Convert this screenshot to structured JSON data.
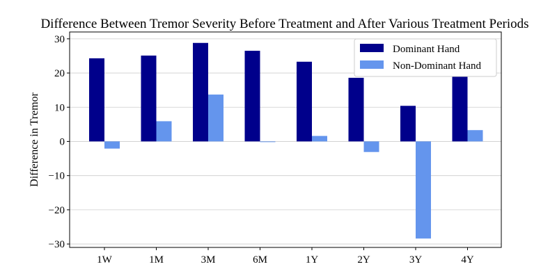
{
  "chart_data": {
    "type": "bar",
    "title": "Difference Between Tremor Severity Before Treatment and After Various Treatment Periods",
    "xlabel": "",
    "ylabel": "Difference in Tremor",
    "categories": [
      "1W",
      "1M",
      "3M",
      "6M",
      "1Y",
      "2Y",
      "3Y",
      "4Y"
    ],
    "series": [
      {
        "name": "Dominant Hand",
        "color": "#00008b",
        "values": [
          24.3,
          25.1,
          28.8,
          26.5,
          23.3,
          18.6,
          10.4,
          23.2
        ]
      },
      {
        "name": "Non-Dominant Hand",
        "color": "#6495ed",
        "values": [
          -2.1,
          5.9,
          13.7,
          -0.2,
          1.6,
          -3.1,
          -28.4,
          3.3
        ]
      }
    ],
    "ylim": [
      -31,
      32
    ],
    "yticks": [
      30,
      20,
      10,
      0,
      -10,
      -20,
      -30
    ],
    "ytick_labels": [
      "30",
      "20",
      "10",
      "0",
      "−10",
      "−20",
      "−30"
    ],
    "grid": "horizontal",
    "legend": "top-right"
  }
}
